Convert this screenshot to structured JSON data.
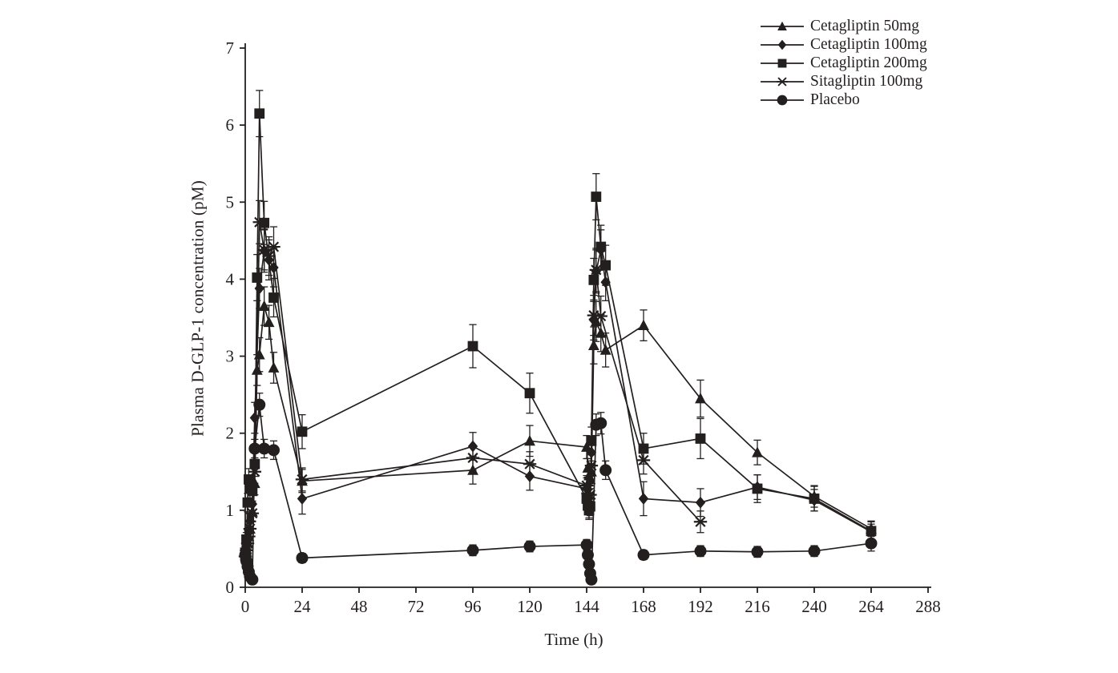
{
  "figure": {
    "background": "#ffffff",
    "ink": "#241f1f"
  },
  "chart_data": {
    "type": "line",
    "title": "",
    "xlabel": "Time (h)",
    "ylabel": "Plasma D-GLP-1 concentration (pM)",
    "xlim": [
      0,
      288
    ],
    "ylim": [
      0,
      7
    ],
    "x_ticks": [
      0,
      24,
      48,
      72,
      96,
      120,
      144,
      168,
      192,
      216,
      240,
      264,
      288
    ],
    "y_ticks": [
      0,
      1,
      2,
      3,
      4,
      5,
      6,
      7
    ],
    "grid": false,
    "error_bars": true,
    "legend_position": "top-right-outside",
    "series": [
      {
        "name": "Cetagliptin 50mg",
        "marker": "triangle",
        "points": [
          [
            0,
            0.42,
            0.07
          ],
          [
            0.5,
            0.5,
            0.08
          ],
          [
            1,
            0.58,
            0.08
          ],
          [
            1.5,
            0.66,
            0.09
          ],
          [
            2,
            0.76,
            0.1
          ],
          [
            3,
            0.98,
            0.12
          ],
          [
            4,
            1.35,
            0.15
          ],
          [
            5,
            2.82,
            0.2
          ],
          [
            6,
            3.02,
            0.22
          ],
          [
            8,
            3.65,
            0.25
          ],
          [
            10,
            3.44,
            0.22
          ],
          [
            12,
            2.85,
            0.2
          ],
          [
            24,
            1.38,
            0.15
          ],
          [
            96,
            1.52,
            0.18
          ],
          [
            120,
            1.9,
            0.2
          ],
          [
            144,
            1.82,
            0.15
          ],
          [
            144.5,
            1.55,
            0.12
          ],
          [
            145,
            1.45,
            0.12
          ],
          [
            145.5,
            1.4,
            0.12
          ],
          [
            146,
            1.5,
            0.14
          ],
          [
            147,
            3.14,
            0.24
          ],
          [
            148,
            3.45,
            0.26
          ],
          [
            150,
            3.3,
            0.24
          ],
          [
            152,
            3.08,
            0.22
          ],
          [
            168,
            3.4,
            0.2
          ],
          [
            192,
            2.45,
            0.24
          ],
          [
            216,
            1.75,
            0.16
          ],
          [
            240,
            1.18,
            0.14
          ],
          [
            264,
            0.76,
            0.1
          ]
        ]
      },
      {
        "name": "Cetagliptin 100mg",
        "marker": "diamond",
        "points": [
          [
            0,
            0.48,
            0.07
          ],
          [
            0.5,
            0.56,
            0.08
          ],
          [
            1,
            0.65,
            0.09
          ],
          [
            1.5,
            0.75,
            0.1
          ],
          [
            2,
            0.86,
            0.1
          ],
          [
            3,
            1.08,
            0.12
          ],
          [
            4,
            2.2,
            0.2
          ],
          [
            6,
            3.88,
            0.26
          ],
          [
            8,
            4.37,
            0.28
          ],
          [
            10,
            4.25,
            0.26
          ],
          [
            12,
            4.15,
            0.25
          ],
          [
            24,
            1.15,
            0.2
          ],
          [
            96,
            1.83,
            0.18
          ],
          [
            120,
            1.44,
            0.18
          ],
          [
            144,
            1.28,
            0.14
          ],
          [
            144.5,
            1.1,
            0.12
          ],
          [
            145,
            1.02,
            0.12
          ],
          [
            145.5,
            1.08,
            0.12
          ],
          [
            146,
            1.75,
            0.16
          ],
          [
            147,
            3.47,
            0.26
          ],
          [
            148,
            4.1,
            0.28
          ],
          [
            150,
            4.38,
            0.26
          ],
          [
            152,
            3.96,
            0.24
          ],
          [
            168,
            1.15,
            0.22
          ],
          [
            192,
            1.1,
            0.18
          ],
          [
            216,
            1.3,
            0.16
          ],
          [
            240,
            1.13,
            0.14
          ],
          [
            264,
            0.72,
            0.1
          ]
        ]
      },
      {
        "name": "Cetagliptin 200mg",
        "marker": "square",
        "points": [
          [
            0,
            0.45,
            0.07
          ],
          [
            0.5,
            0.62,
            0.09
          ],
          [
            1,
            1.1,
            0.12
          ],
          [
            1.5,
            1.4,
            0.14
          ],
          [
            2,
            1.28,
            0.12
          ],
          [
            3,
            1.25,
            0.13
          ],
          [
            4,
            1.6,
            0.16
          ],
          [
            5,
            4.02,
            0.3
          ],
          [
            6,
            6.15,
            0.3
          ],
          [
            8,
            4.73,
            0.28
          ],
          [
            12,
            3.76,
            0.25
          ],
          [
            24,
            2.02,
            0.22
          ],
          [
            96,
            3.13,
            0.28
          ],
          [
            120,
            2.52,
            0.26
          ],
          [
            144,
            1.15,
            0.14
          ],
          [
            144.5,
            1.06,
            0.12
          ],
          [
            145,
            1.0,
            0.12
          ],
          [
            145.5,
            1.05,
            0.12
          ],
          [
            146,
            1.9,
            0.18
          ],
          [
            147,
            3.99,
            0.28
          ],
          [
            148,
            5.07,
            0.3
          ],
          [
            150,
            4.42,
            0.28
          ],
          [
            152,
            4.18,
            0.26
          ],
          [
            168,
            1.8,
            0.2
          ],
          [
            192,
            1.93,
            0.26
          ],
          [
            216,
            1.28,
            0.18
          ],
          [
            240,
            1.15,
            0.16
          ],
          [
            264,
            0.73,
            0.12
          ]
        ]
      },
      {
        "name": "Sitagliptin 100mg",
        "marker": "star",
        "points": [
          [
            0,
            0.4,
            0.06
          ],
          [
            0.5,
            0.48,
            0.07
          ],
          [
            1,
            0.57,
            0.08
          ],
          [
            1.5,
            0.66,
            0.09
          ],
          [
            2,
            0.76,
            0.1
          ],
          [
            3,
            0.96,
            0.11
          ],
          [
            4,
            1.5,
            0.15
          ],
          [
            6,
            4.74,
            0.28
          ],
          [
            8,
            4.38,
            0.26
          ],
          [
            10,
            4.3,
            0.25
          ],
          [
            12,
            4.42,
            0.26
          ],
          [
            24,
            1.4,
            0.15
          ],
          [
            96,
            1.68,
            0.16
          ],
          [
            120,
            1.6,
            0.16
          ],
          [
            144,
            1.32,
            0.13
          ],
          [
            144.5,
            1.22,
            0.12
          ],
          [
            145,
            1.15,
            0.12
          ],
          [
            145.5,
            1.2,
            0.12
          ],
          [
            146,
            1.58,
            0.14
          ],
          [
            147,
            3.53,
            0.26
          ],
          [
            148,
            4.12,
            0.28
          ],
          [
            150,
            3.52,
            0.26
          ],
          [
            168,
            1.65,
            0.18
          ],
          [
            192,
            0.85,
            0.14
          ]
        ]
      },
      {
        "name": "Placebo",
        "marker": "circle",
        "points": [
          [
            0,
            0.42,
            0.05
          ],
          [
            0.5,
            0.34,
            0.05
          ],
          [
            1,
            0.27,
            0.05
          ],
          [
            1.5,
            0.2,
            0.04
          ],
          [
            2,
            0.14,
            0.04
          ],
          [
            3,
            0.1,
            0.03
          ],
          [
            4,
            1.8,
            0.12
          ],
          [
            6,
            2.37,
            0.15
          ],
          [
            8,
            1.8,
            0.12
          ],
          [
            12,
            1.78,
            0.12
          ],
          [
            24,
            0.38,
            0.06
          ],
          [
            96,
            0.48,
            0.07
          ],
          [
            120,
            0.53,
            0.07
          ],
          [
            144,
            0.55,
            0.07
          ],
          [
            144.5,
            0.42,
            0.05
          ],
          [
            145,
            0.3,
            0.05
          ],
          [
            145.5,
            0.18,
            0.04
          ],
          [
            146,
            0.1,
            0.03
          ],
          [
            148,
            2.11,
            0.14
          ],
          [
            150,
            2.13,
            0.14
          ],
          [
            152,
            1.52,
            0.12
          ],
          [
            168,
            0.42,
            0.06
          ],
          [
            192,
            0.47,
            0.07
          ],
          [
            216,
            0.46,
            0.07
          ],
          [
            240,
            0.47,
            0.07
          ],
          [
            264,
            0.57,
            0.1
          ]
        ]
      }
    ]
  }
}
